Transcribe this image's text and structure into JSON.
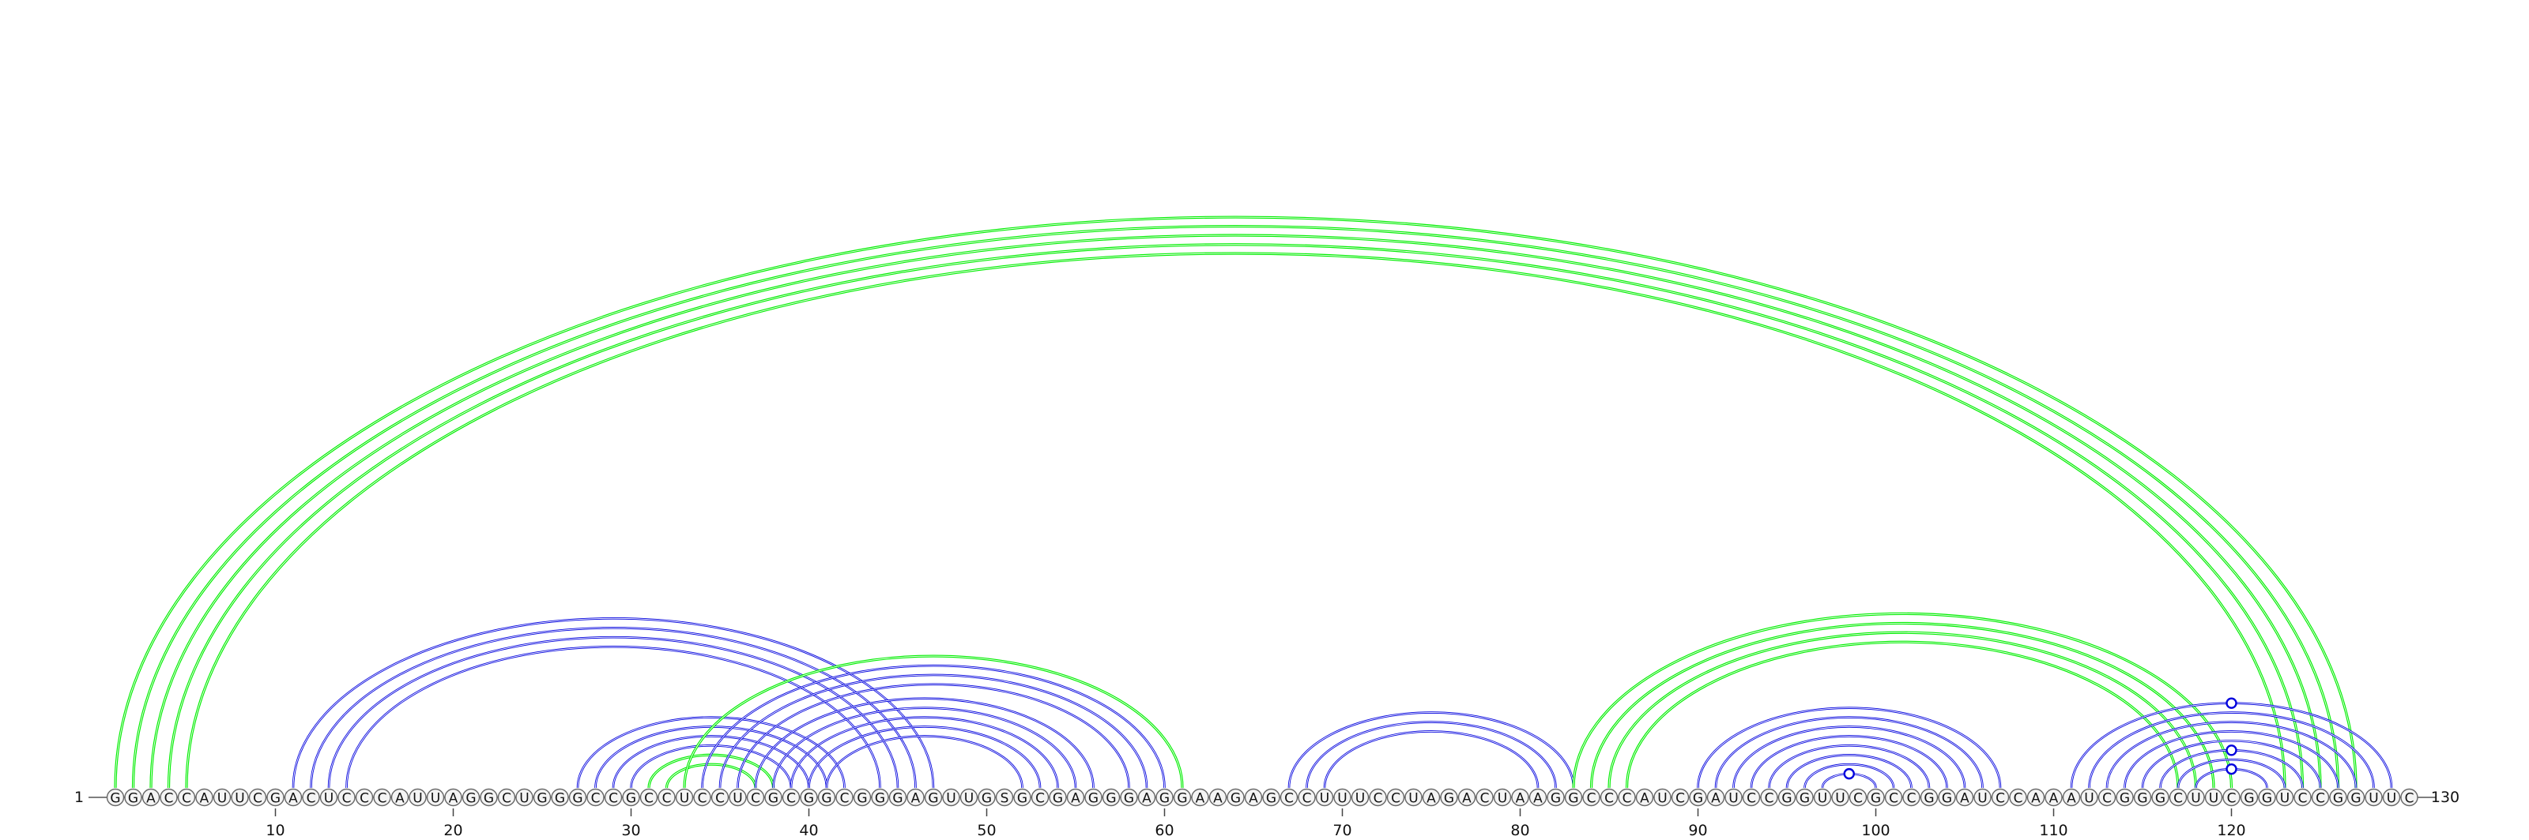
{
  "sequence": {
    "start_label": "1",
    "end_label": "130",
    "nucleotides": "GGACCAUUCGACUCCCAUUAGGCUGGGCCGCCUCCUCGCGGCGGGAGUUGSGCGAGGGAGGAAGAGCCUUUCCUAGACUAAGGCCCAUCGAUCCGGUUCGCCGGAUCCAAAUCGGGCUUCGGUCCGGUUC"
  },
  "axis": {
    "ticks": [
      10,
      20,
      30,
      40,
      50,
      60,
      70,
      80,
      90,
      100,
      110,
      120
    ]
  },
  "colors": {
    "pair_arc": "#0000dd",
    "pseudoknot_arc": "#00ee00",
    "backbone_text": "#111111",
    "nucleotide_border": "#666666",
    "nucleotide_fill": "#f4f4f4"
  },
  "base_pairs": [
    {
      "i": 1,
      "j": 127,
      "kind": "pseudoknot"
    },
    {
      "i": 2,
      "j": 126,
      "kind": "pseudoknot"
    },
    {
      "i": 3,
      "j": 125,
      "kind": "pseudoknot"
    },
    {
      "i": 4,
      "j": 124,
      "kind": "pseudoknot"
    },
    {
      "i": 5,
      "j": 123,
      "kind": "pseudoknot"
    },
    {
      "i": 11,
      "j": 47,
      "kind": "pair"
    },
    {
      "i": 12,
      "j": 46,
      "kind": "pair"
    },
    {
      "i": 13,
      "j": 45,
      "kind": "pair"
    },
    {
      "i": 14,
      "j": 44,
      "kind": "pair"
    },
    {
      "i": 27,
      "j": 42,
      "kind": "pair"
    },
    {
      "i": 28,
      "j": 41,
      "kind": "pair"
    },
    {
      "i": 29,
      "j": 40,
      "kind": "pair"
    },
    {
      "i": 30,
      "j": 39,
      "kind": "pair"
    },
    {
      "i": 31,
      "j": 38,
      "kind": "pseudoknot"
    },
    {
      "i": 32,
      "j": 37,
      "kind": "pseudoknot"
    },
    {
      "i": 33,
      "j": 61,
      "kind": "pseudoknot"
    },
    {
      "i": 34,
      "j": 60,
      "kind": "pair"
    },
    {
      "i": 35,
      "j": 59,
      "kind": "pair"
    },
    {
      "i": 36,
      "j": 58,
      "kind": "pair"
    },
    {
      "i": 37,
      "j": 56,
      "kind": "pair"
    },
    {
      "i": 38,
      "j": 55,
      "kind": "pair"
    },
    {
      "i": 39,
      "j": 54,
      "kind": "pair"
    },
    {
      "i": 40,
      "j": 53,
      "kind": "pair"
    },
    {
      "i": 41,
      "j": 52,
      "kind": "pair"
    },
    {
      "i": 67,
      "j": 83,
      "kind": "pair"
    },
    {
      "i": 68,
      "j": 82,
      "kind": "pair"
    },
    {
      "i": 69,
      "j": 81,
      "kind": "pair"
    },
    {
      "i": 83,
      "j": 120,
      "kind": "pseudoknot"
    },
    {
      "i": 84,
      "j": 119,
      "kind": "pseudoknot"
    },
    {
      "i": 85,
      "j": 118,
      "kind": "pseudoknot"
    },
    {
      "i": 86,
      "j": 117,
      "kind": "pseudoknot"
    },
    {
      "i": 90,
      "j": 107,
      "kind": "pair"
    },
    {
      "i": 91,
      "j": 106,
      "kind": "pair"
    },
    {
      "i": 92,
      "j": 105,
      "kind": "pair"
    },
    {
      "i": 93,
      "j": 104,
      "kind": "pair"
    },
    {
      "i": 94,
      "j": 103,
      "kind": "pair"
    },
    {
      "i": 95,
      "j": 102,
      "kind": "pair"
    },
    {
      "i": 96,
      "j": 101,
      "kind": "pair"
    },
    {
      "i": 97,
      "j": 100,
      "kind": "pair"
    },
    {
      "i": 111,
      "j": 129,
      "kind": "pair"
    },
    {
      "i": 112,
      "j": 128,
      "kind": "pair"
    },
    {
      "i": 113,
      "j": 127,
      "kind": "pair"
    },
    {
      "i": 114,
      "j": 126,
      "kind": "pair"
    },
    {
      "i": 115,
      "j": 125,
      "kind": "pair"
    },
    {
      "i": 116,
      "j": 124,
      "kind": "pair"
    },
    {
      "i": 117,
      "j": 123,
      "kind": "pair"
    },
    {
      "i": 118,
      "j": 122,
      "kind": "pair"
    }
  ],
  "noncanonical_markers": [
    {
      "i": 97,
      "j": 100
    },
    {
      "i": 118,
      "j": 122
    },
    {
      "i": 116,
      "j": 124
    },
    {
      "i": 111,
      "j": 129
    }
  ]
}
